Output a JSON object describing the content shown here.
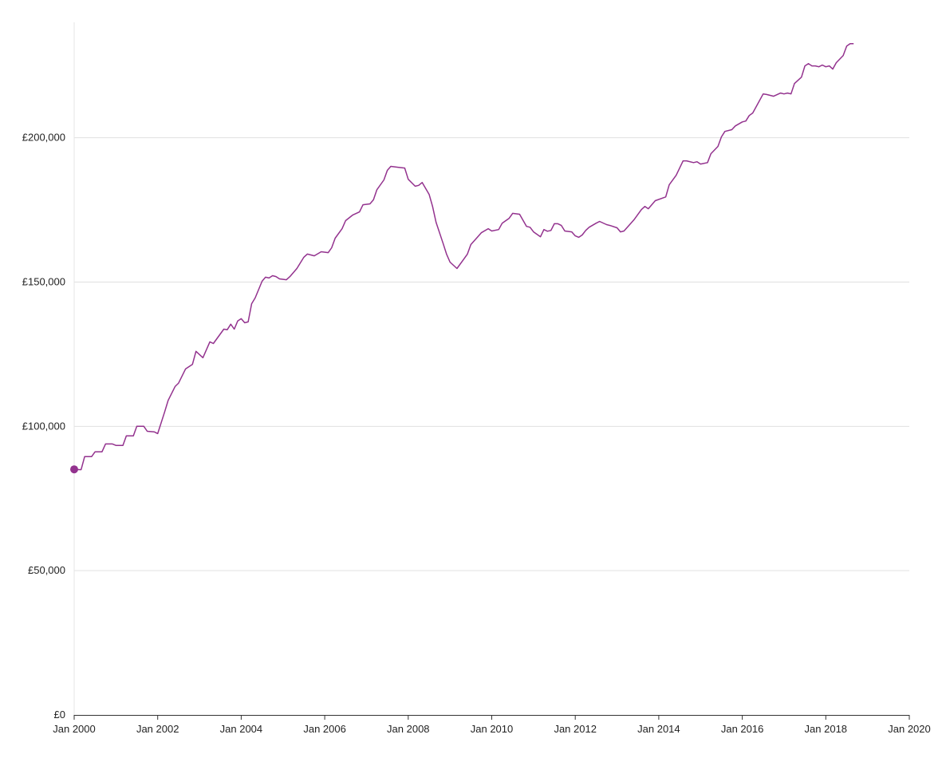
{
  "chart_data": {
    "type": "line",
    "title": "",
    "xlabel": "",
    "ylabel": "",
    "xlim": [
      "2000-01",
      "2020-01"
    ],
    "ylim": [
      0,
      240000
    ],
    "grid": "horizontal",
    "legend": "none",
    "x_ticks": [
      "Jan 2000",
      "Jan 2002",
      "Jan 2004",
      "Jan 2006",
      "Jan 2008",
      "Jan 2010",
      "Jan 2012",
      "Jan 2014",
      "Jan 2016",
      "Jan 2018",
      "Jan 2020"
    ],
    "y_ticks": [
      0,
      50000,
      100000,
      150000,
      200000
    ],
    "y_tick_labels": [
      "£0",
      "£50,000",
      "£100,000",
      "£150,000",
      "£200,000"
    ],
    "line_color": "#93328e",
    "highlight_point": {
      "x": "2000-01",
      "y": 85100
    },
    "x": [
      "2000-01",
      "2000-03",
      "2000-04",
      "2000-06",
      "2000-07",
      "2000-09",
      "2000-10",
      "2000-12",
      "2001-01",
      "2001-03",
      "2001-04",
      "2001-06",
      "2001-07",
      "2001-09",
      "2001-10",
      "2001-12",
      "2002-01",
      "2002-03",
      "2002-04",
      "2002-06",
      "2002-07",
      "2002-09",
      "2002-11",
      "2002-12",
      "2003-02",
      "2003-04",
      "2003-05",
      "2003-08",
      "2003-09",
      "2003-10",
      "2003-11",
      "2003-12",
      "2004-01",
      "2004-02",
      "2004-03",
      "2004-04",
      "2004-05",
      "2004-07",
      "2004-08",
      "2004-09",
      "2004-10",
      "2004-11",
      "2004-12",
      "2005-02",
      "2005-03",
      "2005-05",
      "2005-07",
      "2005-08",
      "2005-10",
      "2005-12",
      "2006-02",
      "2006-03",
      "2006-04",
      "2006-06",
      "2006-07",
      "2006-09",
      "2006-11",
      "2006-12",
      "2007-02",
      "2007-03",
      "2007-04",
      "2007-06",
      "2007-07",
      "2007-08",
      "2007-10",
      "2007-12",
      "2008-01",
      "2008-03",
      "2008-04",
      "2008-05",
      "2008-07",
      "2008-08",
      "2008-09",
      "2008-11",
      "2008-12",
      "2009-01",
      "2009-03",
      "2009-05",
      "2009-06",
      "2009-07",
      "2009-09",
      "2009-10",
      "2009-12",
      "2010-01",
      "2010-03",
      "2010-04",
      "2010-06",
      "2010-07",
      "2010-09",
      "2010-11",
      "2010-12",
      "2011-01",
      "2011-03",
      "2011-04",
      "2011-05",
      "2011-06",
      "2011-07",
      "2011-08",
      "2011-09",
      "2011-10",
      "2011-12",
      "2012-01",
      "2012-02",
      "2012-03",
      "2012-04",
      "2012-05",
      "2012-07",
      "2012-08",
      "2012-10",
      "2012-11",
      "2013-01",
      "2013-02",
      "2013-03",
      "2013-05",
      "2013-06",
      "2013-08",
      "2013-09",
      "2013-10",
      "2013-12",
      "2014-03",
      "2014-04",
      "2014-06",
      "2014-08",
      "2014-09",
      "2014-11",
      "2014-12",
      "2015-01",
      "2015-03",
      "2015-04",
      "2015-06",
      "2015-07",
      "2015-08",
      "2015-10",
      "2015-11",
      "2016-01",
      "2016-02",
      "2016-03",
      "2016-04",
      "2016-07",
      "2016-08",
      "2016-10",
      "2016-12",
      "2017-01",
      "2017-02",
      "2017-03",
      "2017-04",
      "2017-06",
      "2017-07",
      "2017-08",
      "2017-09",
      "2017-10",
      "2017-11",
      "2017-12",
      "2018-01",
      "2018-02",
      "2018-03",
      "2018-04",
      "2018-06",
      "2018-07",
      "2018-08",
      "2018-09"
    ],
    "values": [
      85100,
      85000,
      89500,
      89500,
      91200,
      91200,
      93900,
      93900,
      93400,
      93400,
      96700,
      96700,
      100000,
      100000,
      98300,
      98100,
      97500,
      105000,
      109000,
      113800,
      115000,
      119900,
      121500,
      126000,
      123800,
      129300,
      128700,
      133700,
      133500,
      135400,
      133700,
      136500,
      137300,
      135900,
      136200,
      142500,
      144500,
      150300,
      151700,
      151400,
      152200,
      151900,
      151100,
      150800,
      151900,
      154700,
      158600,
      159700,
      159100,
      160500,
      160200,
      161900,
      165200,
      168500,
      171300,
      173200,
      174300,
      176800,
      177100,
      178500,
      182000,
      185400,
      188700,
      190100,
      189800,
      189500,
      185600,
      183200,
      183500,
      184500,
      180400,
      176200,
      170700,
      163500,
      159700,
      156900,
      154700,
      158000,
      159700,
      163000,
      165700,
      167100,
      168500,
      167700,
      168200,
      170400,
      172100,
      173800,
      173500,
      169300,
      169000,
      167400,
      165700,
      168200,
      167600,
      167900,
      170200,
      170200,
      169600,
      167700,
      167400,
      166000,
      165500,
      166300,
      167900,
      169000,
      170400,
      171000,
      169900,
      169600,
      168800,
      167400,
      167700,
      170400,
      171800,
      175100,
      176200,
      175400,
      178200,
      179500,
      183700,
      187000,
      192000,
      192000,
      191400,
      191700,
      190900,
      191400,
      194500,
      197000,
      200300,
      202200,
      202800,
      204100,
      205500,
      205800,
      207700,
      208600,
      215200,
      215000,
      214400,
      215500,
      215200,
      215500,
      215200,
      218800,
      221000,
      224900,
      225700,
      224900,
      224900,
      224600,
      225200,
      224600,
      224900,
      223800,
      226000,
      228500,
      231800,
      232600,
      232600
    ]
  }
}
